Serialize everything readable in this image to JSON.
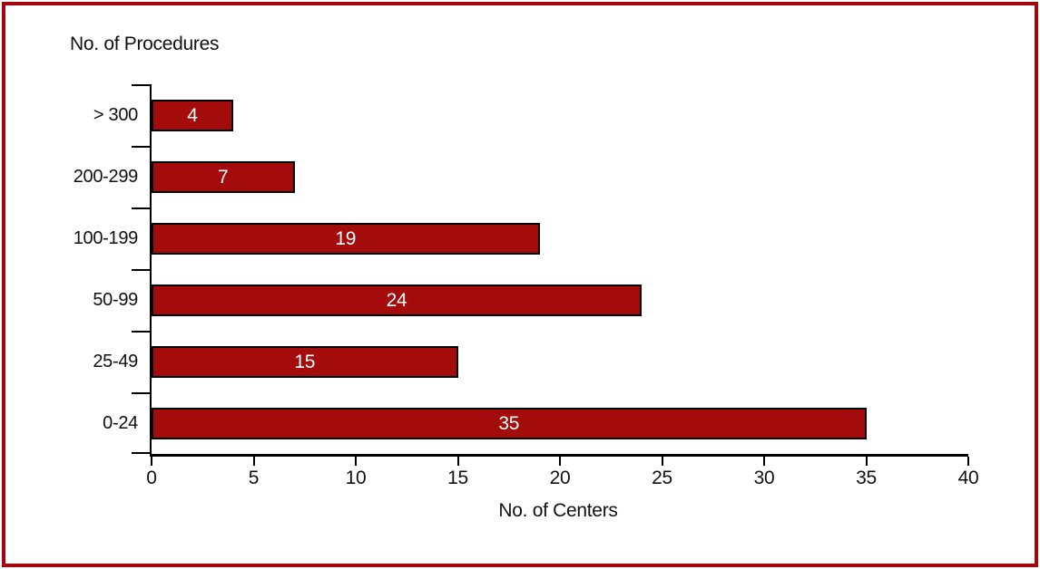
{
  "frame": {
    "border_color": "#a3060f"
  },
  "chart_data": {
    "type": "bar",
    "orientation": "horizontal",
    "title": "No. of Procedures",
    "xlabel": "No. of Centers",
    "categories": [
      "> 300",
      "200-299",
      "100-199",
      "50-99",
      "25-49",
      "0-24"
    ],
    "values": [
      4,
      7,
      19,
      24,
      15,
      35
    ],
    "xlim": [
      0,
      40
    ],
    "x_ticks": [
      0,
      5,
      10,
      15,
      20,
      25,
      30,
      35,
      40
    ],
    "grid": false,
    "legend": false,
    "bar_color": "#a40b0b",
    "bar_border_color": "#000000",
    "value_label_color": "#ffffff",
    "axis_color": "#000000",
    "text_color": "#111111"
  }
}
